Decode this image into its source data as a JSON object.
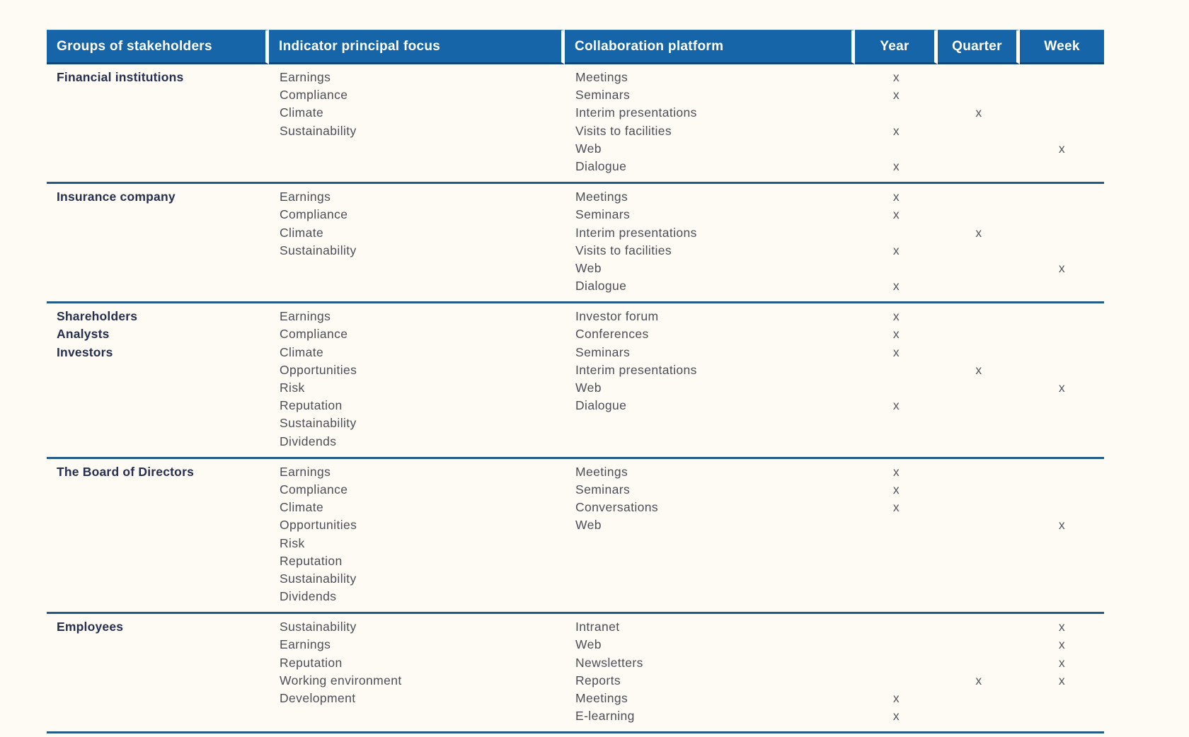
{
  "table": {
    "headers": [
      "Groups of stakeholders",
      "Indicator principal focus",
      "Collaboration platform",
      "Year",
      "Quarter",
      "Week"
    ],
    "sections": [
      {
        "group": [
          "Financial institutions"
        ],
        "indicators": [
          "Earnings",
          "Compliance",
          "Climate",
          "Sustainability"
        ],
        "platforms": [
          {
            "name": "Meetings",
            "year": "x",
            "quarter": "",
            "week": ""
          },
          {
            "name": "Seminars",
            "year": "x",
            "quarter": "",
            "week": ""
          },
          {
            "name": "Interim presentations",
            "year": "",
            "quarter": "x",
            "week": ""
          },
          {
            "name": "Visits to facilities",
            "year": "x",
            "quarter": "",
            "week": ""
          },
          {
            "name": "Web",
            "year": "",
            "quarter": "",
            "week": "x"
          },
          {
            "name": "Dialogue",
            "year": "x",
            "quarter": "",
            "week": ""
          }
        ]
      },
      {
        "group": [
          "Insurance company"
        ],
        "indicators": [
          "Earnings",
          "Compliance",
          "Climate",
          "Sustainability"
        ],
        "platforms": [
          {
            "name": "Meetings",
            "year": "x",
            "quarter": "",
            "week": ""
          },
          {
            "name": "Seminars",
            "year": "x",
            "quarter": "",
            "week": ""
          },
          {
            "name": "Interim presentations",
            "year": "",
            "quarter": "x",
            "week": ""
          },
          {
            "name": "Visits to facilities",
            "year": "x",
            "quarter": "",
            "week": ""
          },
          {
            "name": "Web",
            "year": "",
            "quarter": "",
            "week": "x"
          },
          {
            "name": "Dialogue",
            "year": "x",
            "quarter": "",
            "week": ""
          }
        ]
      },
      {
        "group": [
          "Shareholders",
          "Analysts",
          "Investors"
        ],
        "indicators": [
          "Earnings",
          "Compliance",
          "Climate",
          "Opportunities",
          "Risk",
          "Reputation",
          "Sustainability",
          "Dividends"
        ],
        "platforms": [
          {
            "name": "Investor forum",
            "year": "x",
            "quarter": "",
            "week": ""
          },
          {
            "name": "Conferences",
            "year": "x",
            "quarter": "",
            "week": ""
          },
          {
            "name": "Seminars",
            "year": "x",
            "quarter": "",
            "week": ""
          },
          {
            "name": "Interim presentations",
            "year": "",
            "quarter": "x",
            "week": ""
          },
          {
            "name": "Web",
            "year": "",
            "quarter": "",
            "week": "x"
          },
          {
            "name": "Dialogue",
            "year": "x",
            "quarter": "",
            "week": ""
          }
        ]
      },
      {
        "group": [
          "The Board of Directors"
        ],
        "indicators": [
          "Earnings",
          "Compliance",
          "Climate",
          "Opportunities",
          "Risk",
          "Reputation",
          "Sustainability",
          "Dividends"
        ],
        "platforms": [
          {
            "name": "Meetings",
            "year": "x",
            "quarter": "",
            "week": ""
          },
          {
            "name": "Seminars",
            "year": "x",
            "quarter": "",
            "week": ""
          },
          {
            "name": "Conversations",
            "year": "x",
            "quarter": "",
            "week": ""
          },
          {
            "name": "Web",
            "year": "",
            "quarter": "",
            "week": "x"
          }
        ]
      },
      {
        "group": [
          "Employees"
        ],
        "indicators": [
          "Sustainability",
          "Earnings",
          "Reputation",
          "Working environment",
          "Development"
        ],
        "platforms": [
          {
            "name": "Intranet",
            "year": "",
            "quarter": "",
            "week": "x"
          },
          {
            "name": "Web",
            "year": "",
            "quarter": "",
            "week": "x"
          },
          {
            "name": "Newsletters",
            "year": "",
            "quarter": "",
            "week": "x"
          },
          {
            "name": "Reports",
            "year": "",
            "quarter": "x",
            "week": "x"
          },
          {
            "name": "Meetings",
            "year": "x",
            "quarter": "",
            "week": ""
          },
          {
            "name": "E-learning",
            "year": "x",
            "quarter": "",
            "week": ""
          }
        ]
      }
    ],
    "mark_glyph": "x",
    "colors": {
      "header_bg": "#1565a8",
      "header_text": "#ffffff",
      "separator": "#235a86",
      "body_text": "#4d4e57",
      "group_text": "#272f4e",
      "page_bg": "#fdfbf4"
    }
  }
}
